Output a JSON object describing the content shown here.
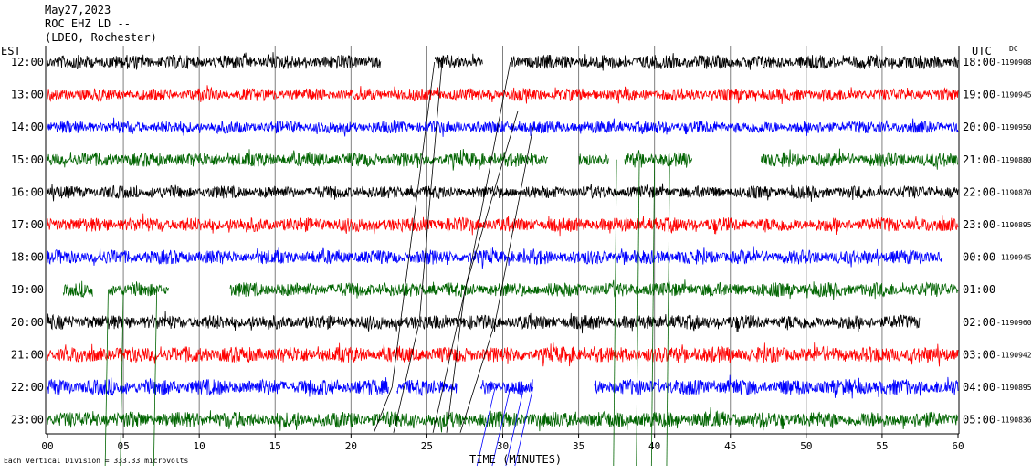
{
  "header": {
    "date": "May27,2023",
    "station": "ROC EHZ LD --",
    "network": "(LDEO, Rochester)"
  },
  "axes": {
    "left_label": "EST",
    "right_label": "UTC",
    "dc_label": "DC",
    "xlabel": "TIME (MINUTES)"
  },
  "footnote": "Each Vertical Division = 333.33 microvolts",
  "colors": {
    "black": "#000000",
    "red": "#ff0000",
    "blue": "#0000ff",
    "green": "#006400",
    "grid": "#808080"
  },
  "chart_data": {
    "type": "line",
    "description_units": "helicorder traces, one row per hour, x in minutes",
    "xlim": [
      0,
      60
    ],
    "x_ticks": [
      "00",
      "05",
      "10",
      "15",
      "20",
      "25",
      "30",
      "35",
      "40",
      "45",
      "50",
      "55",
      "60"
    ],
    "rows": [
      {
        "est": "12:00",
        "utc": "18:00",
        "dc": "-1190908",
        "color": "black",
        "amp": 8,
        "gaps": [
          [
            22,
            25.5
          ],
          [
            28.7,
            30.5
          ]
        ]
      },
      {
        "est": "13:00",
        "utc": "19:00",
        "dc": "-1190945",
        "color": "red",
        "amp": 7,
        "gaps": []
      },
      {
        "est": "14:00",
        "utc": "20:00",
        "dc": "-1190950",
        "color": "blue",
        "amp": 7,
        "gaps": []
      },
      {
        "est": "15:00",
        "utc": "21:00",
        "dc": "-1190880",
        "color": "green",
        "amp": 8,
        "gaps": [
          [
            33,
            35
          ],
          [
            37,
            38
          ],
          [
            42.5,
            47
          ]
        ]
      },
      {
        "est": "16:00",
        "utc": "22:00",
        "dc": "-1190870",
        "color": "black",
        "amp": 7,
        "gaps": []
      },
      {
        "est": "17:00",
        "utc": "23:00",
        "dc": "-1190895",
        "color": "red",
        "amp": 8,
        "gaps": []
      },
      {
        "est": "18:00",
        "utc": "00:00",
        "dc": "-1190945",
        "color": "blue",
        "amp": 8,
        "gaps": [
          [
            59,
            60
          ]
        ]
      },
      {
        "est": "19:00",
        "utc": "01:00",
        "dc": "",
        "color": "green",
        "amp": 8,
        "gaps": [
          [
            0,
            1
          ],
          [
            3,
            4
          ],
          [
            8,
            12
          ]
        ]
      },
      {
        "est": "20:00",
        "utc": "02:00",
        "dc": "-1190960",
        "color": "black",
        "amp": 8,
        "gaps": [
          [
            57.5,
            60
          ]
        ]
      },
      {
        "est": "21:00",
        "utc": "03:00",
        "dc": "-1190942",
        "color": "red",
        "amp": 9,
        "gaps": []
      },
      {
        "est": "22:00",
        "utc": "04:00",
        "dc": "-1190895",
        "color": "blue",
        "amp": 9,
        "gaps": [
          [
            22.5,
            23
          ],
          [
            27,
            28.5
          ],
          [
            32,
            36
          ]
        ]
      },
      {
        "est": "23:00",
        "utc": "05:00",
        "dc": "-1190836",
        "color": "green",
        "amp": 9,
        "gaps": []
      }
    ]
  }
}
